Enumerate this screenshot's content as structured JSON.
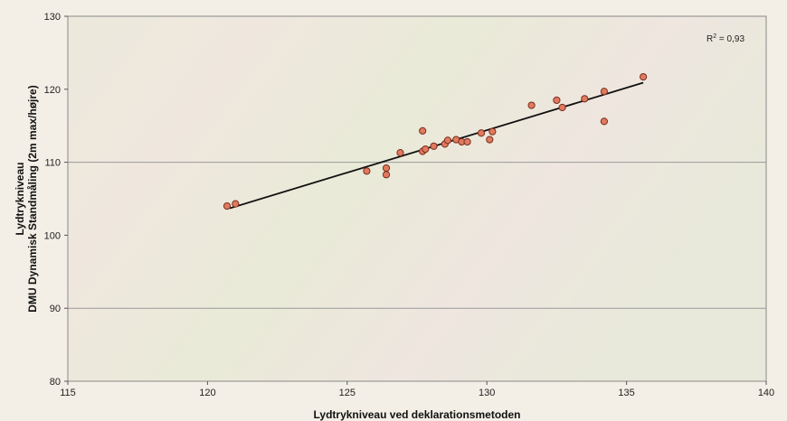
{
  "chart_data": {
    "type": "scatter",
    "xlabel": "Lydtrykniveau ved deklarationsmetoden",
    "ylabel_lines": [
      "Lydtrykniveau",
      "DMU Dynamisk Standmåling (2m max/højre)"
    ],
    "xlim": [
      115,
      140
    ],
    "ylim": [
      80,
      130
    ],
    "x_ticks": [
      115,
      120,
      125,
      130,
      135,
      140
    ],
    "y_ticks": [
      80,
      90,
      100,
      110,
      120,
      130
    ],
    "grid": "horizontal major gridlines at 90, 110",
    "annotation": {
      "base": "R",
      "sup": "2",
      "rest": " = 0,93"
    },
    "marker_color": "#e07a5f",
    "marker_edge": "#7a2e1c",
    "trendline": {
      "x": [
        120.8,
        135.6
      ],
      "y": [
        103.7,
        120.9
      ]
    },
    "points": [
      {
        "x": 120.7,
        "y": 104.0
      },
      {
        "x": 121.0,
        "y": 104.3
      },
      {
        "x": 125.7,
        "y": 108.8
      },
      {
        "x": 126.4,
        "y": 108.3
      },
      {
        "x": 126.4,
        "y": 109.2
      },
      {
        "x": 126.9,
        "y": 111.3
      },
      {
        "x": 127.7,
        "y": 114.3
      },
      {
        "x": 127.7,
        "y": 111.5
      },
      {
        "x": 127.8,
        "y": 111.8
      },
      {
        "x": 128.1,
        "y": 112.2
      },
      {
        "x": 128.5,
        "y": 112.5
      },
      {
        "x": 128.6,
        "y": 113.0
      },
      {
        "x": 128.9,
        "y": 113.1
      },
      {
        "x": 129.1,
        "y": 112.8
      },
      {
        "x": 129.3,
        "y": 112.8
      },
      {
        "x": 129.8,
        "y": 114.0
      },
      {
        "x": 130.1,
        "y": 113.1
      },
      {
        "x": 130.2,
        "y": 114.2
      },
      {
        "x": 131.6,
        "y": 117.8
      },
      {
        "x": 132.5,
        "y": 118.5
      },
      {
        "x": 132.7,
        "y": 117.5
      },
      {
        "x": 133.5,
        "y": 118.7
      },
      {
        "x": 134.2,
        "y": 115.6
      },
      {
        "x": 134.2,
        "y": 119.7
      },
      {
        "x": 135.6,
        "y": 121.7
      }
    ]
  }
}
